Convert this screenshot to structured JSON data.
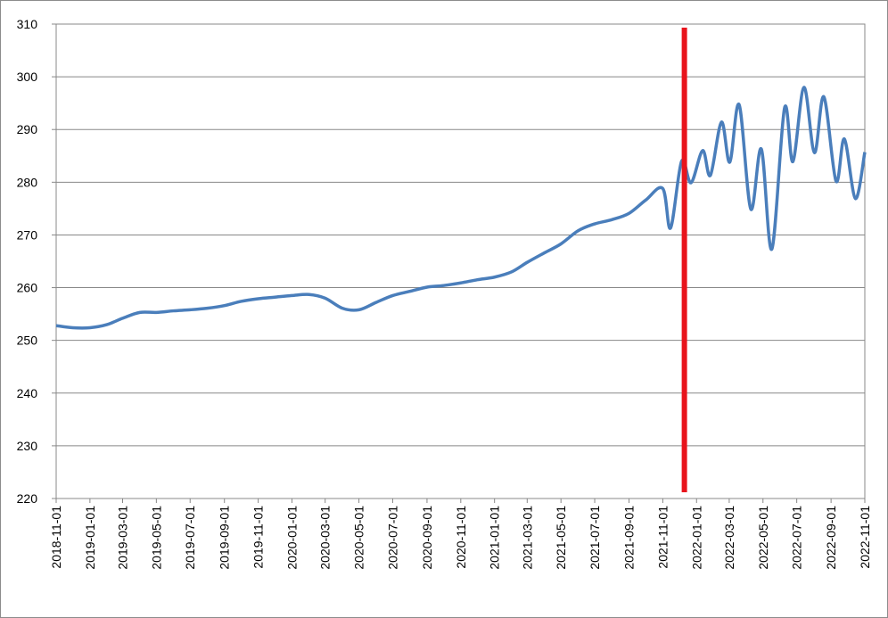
{
  "chart_data": {
    "type": "line",
    "x": [
      "2018-11-01",
      "2018-12-01",
      "2019-01-01",
      "2019-02-01",
      "2019-03-01",
      "2019-04-01",
      "2019-05-01",
      "2019-06-01",
      "2019-07-01",
      "2019-08-01",
      "2019-09-01",
      "2019-10-01",
      "2019-11-01",
      "2019-12-01",
      "2020-01-01",
      "2020-02-01",
      "2020-03-01",
      "2020-04-01",
      "2020-05-01",
      "2020-06-01",
      "2020-07-01",
      "2020-08-01",
      "2020-09-01",
      "2020-10-01",
      "2020-11-01",
      "2020-12-01",
      "2021-01-01",
      "2021-02-01",
      "2021-03-01",
      "2021-04-01",
      "2021-05-01",
      "2021-06-01",
      "2021-07-01",
      "2021-08-01",
      "2021-09-01",
      "2021-10-01",
      "2021-11-01",
      "2021-11-15",
      "2021-12-05",
      "2021-12-22",
      "2022-01-12",
      "2022-01-26",
      "2022-02-15",
      "2022-03-02",
      "2022-03-19",
      "2022-04-09",
      "2022-04-28",
      "2022-05-17",
      "2022-06-09",
      "2022-06-24",
      "2022-07-14",
      "2022-08-02",
      "2022-08-19",
      "2022-09-10",
      "2022-09-25",
      "2022-10-15",
      "2022-11-01"
    ],
    "series": [
      {
        "color": "#4a7ebb",
        "values": [
          252.8,
          252.4,
          252.4,
          253.0,
          254.2,
          255.3,
          255.3,
          255.6,
          255.8,
          256.1,
          256.6,
          257.4,
          257.9,
          258.2,
          258.5,
          258.7,
          258.0,
          256.1,
          255.8,
          257.2,
          258.5,
          259.3,
          260.1,
          260.4,
          260.9,
          261.5,
          262.0,
          263.0,
          264.8,
          266.6,
          268.3,
          270.8,
          272.1,
          272.9,
          274.1,
          276.6,
          278.8,
          271.3,
          284.0,
          279.9,
          286.0,
          281.3,
          291.4,
          283.8,
          294.7,
          274.9,
          286.3,
          267.3,
          294.1,
          283.9,
          298.0,
          285.6,
          296.2,
          280.2,
          288.2,
          276.9,
          285.7
        ]
      }
    ],
    "xlim": [
      "2018-11-01",
      "2022-11-01"
    ],
    "xticks": [
      "2018-11-01",
      "2019-01-01",
      "2019-03-01",
      "2019-05-01",
      "2019-07-01",
      "2019-09-01",
      "2019-11-01",
      "2020-01-01",
      "2020-03-01",
      "2020-05-01",
      "2020-07-01",
      "2020-09-01",
      "2020-11-01",
      "2021-01-01",
      "2021-03-01",
      "2021-05-01",
      "2021-07-01",
      "2021-09-01",
      "2021-11-01",
      "2022-01-01",
      "2022-03-01",
      "2022-05-01",
      "2022-07-01",
      "2022-09-01",
      "2022-11-01"
    ],
    "ylim": [
      220,
      310
    ],
    "yticks": [
      220,
      230,
      240,
      250,
      260,
      270,
      280,
      290,
      300,
      310
    ],
    "grid": true,
    "vline": {
      "x": "2021-12-10",
      "color": "#e8141c"
    }
  }
}
